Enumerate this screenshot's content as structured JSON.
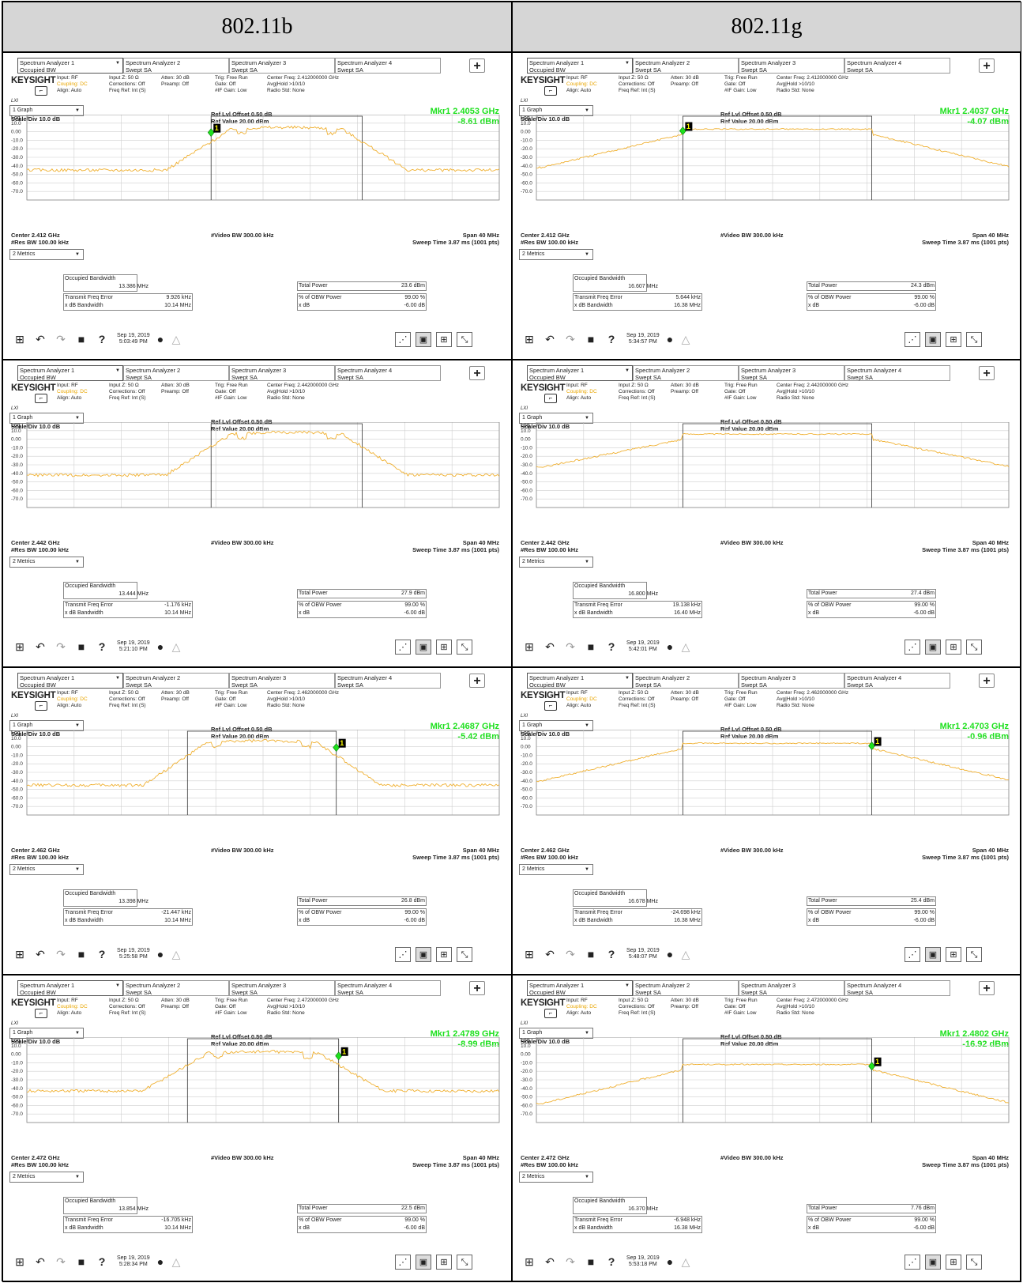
{
  "headers": [
    "802.11b",
    "802.11g"
  ],
  "common": {
    "tabs": [
      {
        "title": "Spectrum Analyzer 1",
        "sub": "Occupied BW"
      },
      {
        "title": "Spectrum Analyzer 2",
        "sub": "Swept SA"
      },
      {
        "title": "Spectrum Analyzer 3",
        "sub": "Swept SA"
      },
      {
        "title": "Spectrum Analyzer 4",
        "sub": "Swept SA"
      }
    ],
    "plus": "+",
    "brand": "KEYSIGHT",
    "lxi": "LXI",
    "info_col1": [
      "Input: RF",
      "Coupling: DC",
      "Align: Auto"
    ],
    "info_col2": [
      "Input Z: 50 Ω",
      "Corrections: Off",
      "Freq Ref: Int (S)"
    ],
    "info_col3": [
      "Atten: 30 dB",
      "Preamp: Off"
    ],
    "info_col4": [
      "Trig: Free Run",
      "Gate: Off",
      "#IF Gain: Low"
    ],
    "info_col5_rest": [
      "Avg|Hold >10/10",
      "Radio Std: None"
    ],
    "graph_select": "1 Graph",
    "scale_div": "Scale/Div 10.0 dB",
    "log_label": "Log",
    "ref_offset": "Ref Lvl Offset 0.50 dB",
    "ref_value": "Ref Value 20.00 dBm",
    "y_ticks": [
      "10.0",
      "0.00",
      "-10.0",
      "-20.0",
      "-30.0",
      "-40.0",
      "-50.0",
      "-60.0",
      "-70.0"
    ],
    "video_bw": "#Video BW 300.00 kHz",
    "res_bw": "#Res BW 100.00 kHz",
    "span": "Span 40 MHz",
    "sweep": "Sweep Time 3.87 ms (1001 pts)",
    "metrics_select": "2 Metrics",
    "labels": {
      "obw": "Occupied Bandwidth",
      "tfe": "Transmit Freq Error",
      "xdbbw": "x dB Bandwidth",
      "total": "Total Power",
      "pct_label": "% of OBW Power",
      "xdb_label": "x dB",
      "pct_value": "99.00 %",
      "xdb_value": "-6.00 dB"
    },
    "colors": {
      "trace": "#f0b030",
      "marker": "#1ee01e",
      "grid": "#cfcfcf"
    }
  },
  "panels": [
    {
      "center_freq": "Center Freq: 2.412000000 GHz",
      "center": "Center 2.412 GHz",
      "mkr_freq": "Mkr1  2.4053 GHz",
      "mkr_amp": "-8.61 dBm",
      "obw": "13.386 MHz",
      "tfe": "9.926 kHz",
      "xdbbw": "10.14 MHz",
      "total": "23.6 dBm",
      "date": "Sep 19, 2019",
      "time": "5:03:49 PM",
      "marker": true,
      "mk_x": 0.39,
      "mk_db": -1,
      "lvl": 5,
      "floor": -45,
      "edgeL": 0.39,
      "edgeR": 0.71,
      "kind": "b"
    },
    {
      "center_freq": "Center Freq: 2.412000000 GHz",
      "center": "Center 2.412 GHz",
      "mkr_freq": "Mkr1  2.4037 GHz",
      "mkr_amp": "-4.07 dBm",
      "obw": "16.607 MHz",
      "tfe": "5.644 kHz",
      "xdbbw": "16.38 MHz",
      "total": "24.3 dBm",
      "date": "Sep 19, 2019",
      "time": "5:34:57 PM",
      "marker": true,
      "mk_x": 0.31,
      "mk_db": 1,
      "lvl": 3,
      "floor": -42,
      "edgeL": 0.31,
      "edgeR": 0.71,
      "kind": "g"
    },
    {
      "center_freq": "Center Freq: 2.442000000 GHz",
      "center": "Center 2.442 GHz",
      "mkr_freq": "",
      "mkr_amp": "",
      "obw": "13.444 MHz",
      "tfe": "-1.176 kHz",
      "xdbbw": "10.14 MHz",
      "total": "27.9 dBm",
      "date": "Sep 19, 2019",
      "time": "5:21:10 PM",
      "marker": false,
      "mk_x": 0.5,
      "mk_db": 0,
      "lvl": 8,
      "floor": -42,
      "edgeL": 0.39,
      "edgeR": 0.71,
      "kind": "b"
    },
    {
      "center_freq": "Center Freq: 2.442000000 GHz",
      "center": "Center 2.442 GHz",
      "mkr_freq": "",
      "mkr_amp": "",
      "obw": "16.800 MHz",
      "tfe": "19.138 kHz",
      "xdbbw": "16.40 MHz",
      "total": "27.4 dBm",
      "date": "Sep 19, 2019",
      "time": "5:42:01 PM",
      "marker": false,
      "mk_x": 0.5,
      "mk_db": 0,
      "lvl": 6,
      "floor": -33,
      "edgeL": 0.31,
      "edgeR": 0.71,
      "kind": "g"
    },
    {
      "center_freq": "Center Freq: 2.462000000 GHz",
      "center": "Center 2.462 GHz",
      "mkr_freq": "Mkr1  2.4687 GHz",
      "mkr_amp": "-5.42 dBm",
      "obw": "13.398 MHz",
      "tfe": "-21.447 kHz",
      "xdbbw": "10.14 MHz",
      "total": "26.8 dBm",
      "date": "Sep 19, 2019",
      "time": "5:25:58 PM",
      "marker": true,
      "mk_x": 0.655,
      "mk_db": -1,
      "lvl": 7,
      "floor": -45,
      "edgeL": 0.34,
      "edgeR": 0.655,
      "kind": "b"
    },
    {
      "center_freq": "Center Freq: 2.462000000 GHz",
      "center": "Center 2.462 GHz",
      "mkr_freq": "Mkr1  2.4703 GHz",
      "mkr_amp": "-0.96 dBm",
      "obw": "16.678 MHz",
      "tfe": "-24.698 kHz",
      "xdbbw": "16.38 MHz",
      "total": "25.4 dBm",
      "date": "Sep 19, 2019",
      "time": "5:48:07 PM",
      "marker": true,
      "mk_x": 0.71,
      "mk_db": 1,
      "lvl": 4,
      "floor": -40,
      "edgeL": 0.31,
      "edgeR": 0.71,
      "kind": "g"
    },
    {
      "center_freq": "Center Freq: 2.472000000 GHz",
      "center": "Center 2.472 GHz",
      "mkr_freq": "Mkr1  2.4789 GHz",
      "mkr_amp": "-8.99 dBm",
      "obw": "13.854 MHz",
      "tfe": "-16.705 kHz",
      "xdbbw": "10.14 MHz",
      "total": "22.5 dBm",
      "date": "Sep 19, 2019",
      "time": "5:28:34 PM",
      "marker": true,
      "mk_x": 0.66,
      "mk_db": -2,
      "lvl": 3,
      "floor": -43,
      "edgeL": 0.34,
      "edgeR": 0.66,
      "kind": "b"
    },
    {
      "center_freq": "Center Freq: 2.472000000 GHz",
      "center": "Center 2.472 GHz",
      "mkr_freq": "Mkr1  2.4802 GHz",
      "mkr_amp": "-16.92 dBm",
      "obw": "16.370 MHz",
      "tfe": "-6.948 kHz",
      "xdbbw": "16.38 MHz",
      "total": "7.76 dBm",
      "date": "Sep 19, 2019",
      "time": "5:53:18 PM",
      "marker": true,
      "mk_x": 0.71,
      "mk_db": -14,
      "lvl": -12,
      "floor": -58,
      "edgeL": 0.31,
      "edgeR": 0.71,
      "kind": "g"
    }
  ]
}
